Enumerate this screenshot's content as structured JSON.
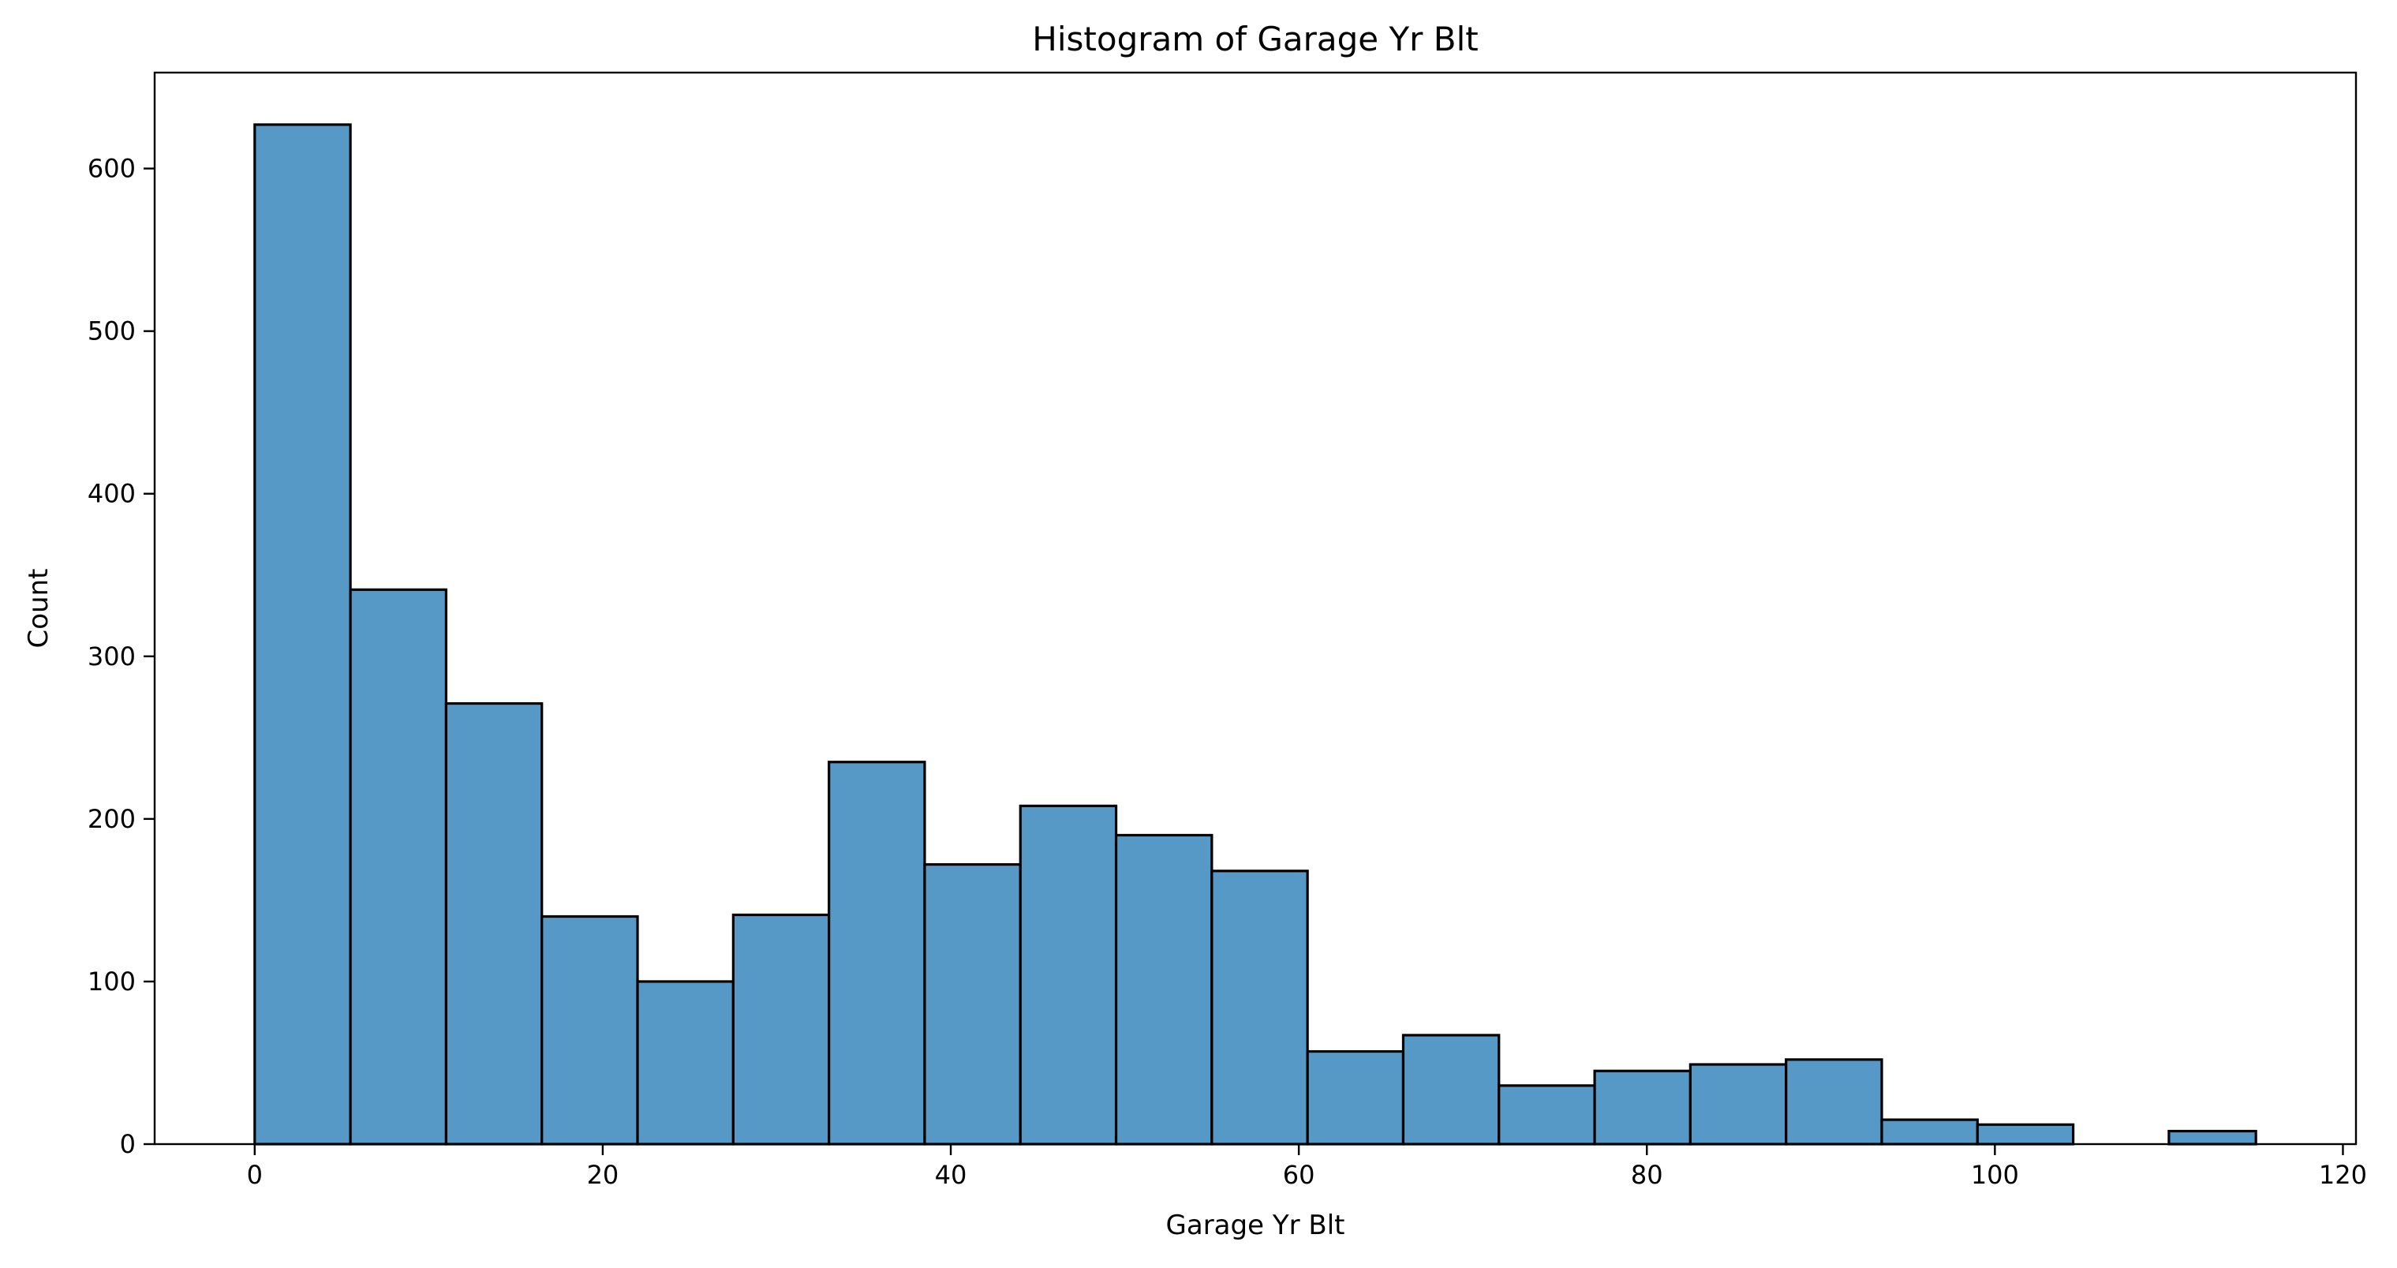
{
  "chart_data": {
    "type": "bar",
    "title": "Histogram of Garage Yr Blt",
    "xlabel": "Garage Yr Blt",
    "ylabel": "Count",
    "xlim": [
      -5.75,
      120.75
    ],
    "ylim": [
      0,
      659
    ],
    "grid": false,
    "bar_color": "#5799c6",
    "edge_color": "#000000",
    "xticks": [
      0,
      20,
      40,
      60,
      80,
      100,
      120
    ],
    "yticks": [
      0,
      100,
      200,
      300,
      400,
      500,
      600
    ],
    "bin_edges": [
      0,
      5.5,
      11,
      16.5,
      22,
      27.5,
      33,
      38.5,
      44,
      49.5,
      55,
      60.5,
      66,
      71.5,
      77,
      82.5,
      88,
      93.5,
      99,
      104.5,
      110,
      115
    ],
    "counts": [
      627,
      341,
      271,
      140,
      100,
      141,
      235,
      172,
      208,
      190,
      168,
      57,
      67,
      36,
      45,
      49,
      52,
      15,
      12,
      0,
      8
    ]
  }
}
